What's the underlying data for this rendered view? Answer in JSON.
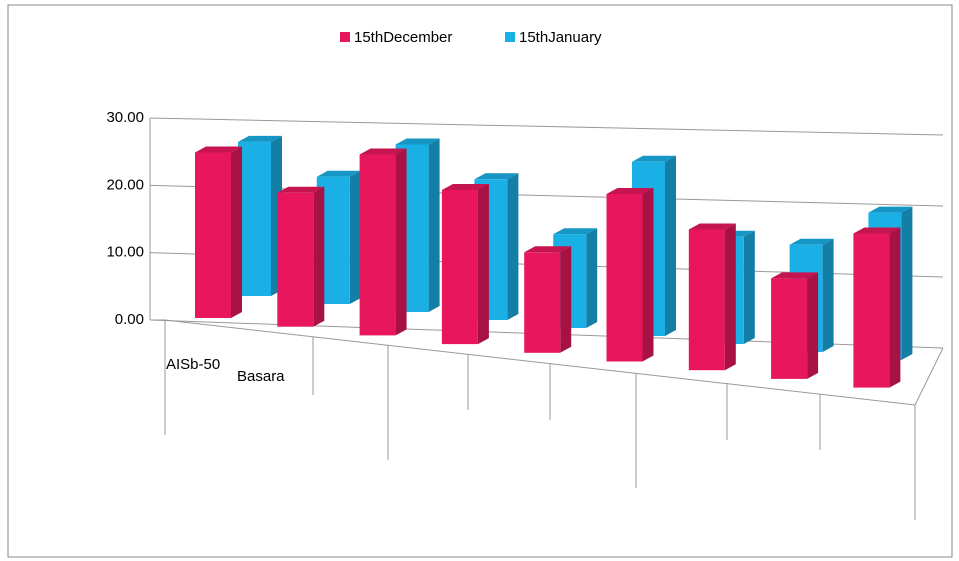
{
  "chart_data": {
    "type": "bar3d",
    "categories": [
      "AISb-50",
      "Basara",
      null,
      null,
      null,
      null,
      null,
      null,
      null
    ],
    "series": [
      {
        "name": "15thDecember",
        "color": "#e8175d",
        "values": [
          24.7,
          20,
          27,
          23,
          15,
          25,
          21,
          15,
          23
        ]
      },
      {
        "name": "15thJanuary",
        "color": "#1ab0e6",
        "values": [
          23,
          19,
          25,
          21,
          14,
          26,
          16,
          16,
          22
        ]
      }
    ],
    "ylim": [
      0,
      30
    ],
    "yticks": [
      {
        "value": 0,
        "label": "0.00"
      },
      {
        "value": 10,
        "label": "10.00"
      },
      {
        "value": 20,
        "label": "20.00"
      },
      {
        "value": 30,
        "label": "30.00"
      }
    ],
    "grid": true,
    "legend": "top"
  }
}
